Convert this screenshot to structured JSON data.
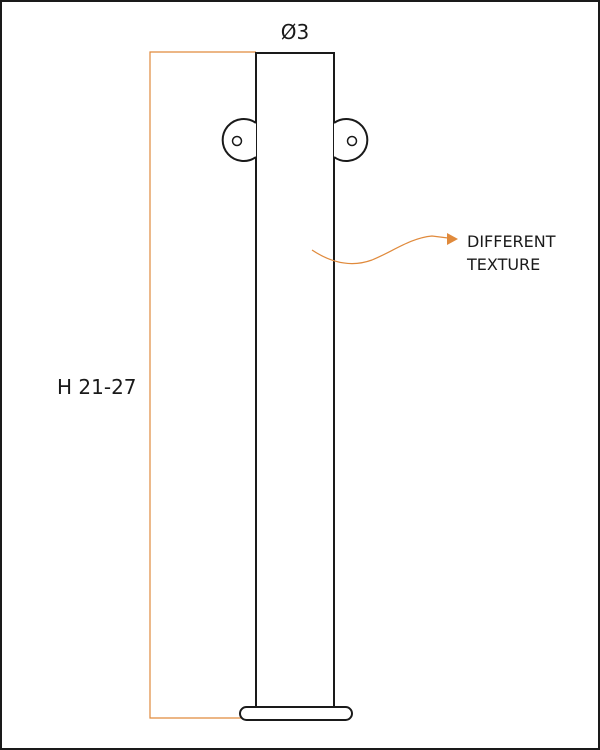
{
  "drawing": {
    "diameter_label": "Ø3",
    "height_label": "H 21-27",
    "callout_line1": "DIFFERENT",
    "callout_line2": "TEXTURE"
  },
  "colors": {
    "line": "#1a1a1a",
    "accent": "#e08a3c",
    "background": "#ffffff"
  }
}
